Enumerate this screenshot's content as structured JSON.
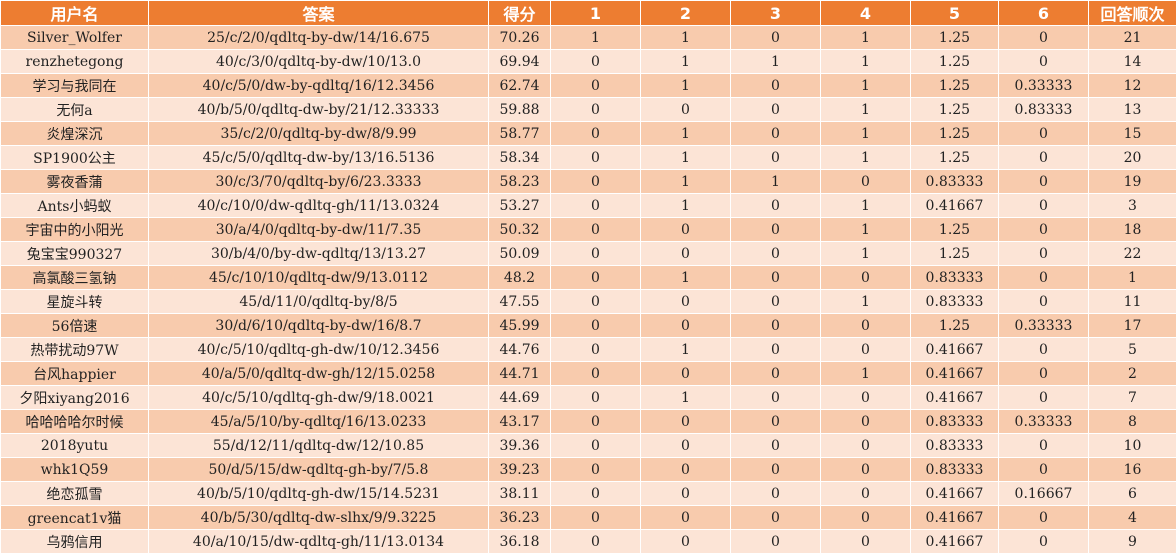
{
  "headers": [
    "用户名",
    "答案",
    "得分",
    "1",
    "2",
    "3",
    "4",
    "5",
    "6",
    "回答顺次"
  ],
  "rows": [
    [
      "Silver_Wolfer",
      "25/c/2/0/qdltq-by-dw/14/16.675",
      "70.26",
      "1",
      "1",
      "0",
      "1",
      "1.25",
      "0",
      "21"
    ],
    [
      "renzhetegong",
      "40/c/3/0/qdltq-by-dw/10/13.0",
      "69.94",
      "0",
      "1",
      "1",
      "1",
      "1.25",
      "0",
      "14"
    ],
    [
      "学习与我同在",
      "40/c/5/0/dw-by-qdltq/16/12.3456",
      "62.74",
      "0",
      "1",
      "0",
      "1",
      "1.25",
      "0.33333",
      "12"
    ],
    [
      "无何a",
      "40/b/5/0/qdltq-dw-by/21/12.33333",
      "59.88",
      "0",
      "0",
      "0",
      "1",
      "1.25",
      "0.83333",
      "13"
    ],
    [
      "炎煌深沉",
      "35/c/2/0/qdltq-by-dw/8/9.99",
      "58.77",
      "0",
      "1",
      "0",
      "1",
      "1.25",
      "0",
      "15"
    ],
    [
      "SP1900公主",
      "45/c/5/0/qdltq-dw-by/13/16.5136",
      "58.34",
      "0",
      "1",
      "0",
      "1",
      "1.25",
      "0",
      "20"
    ],
    [
      "雾夜香蒲",
      "30/c/3/70/qdltq-by/6/23.3333",
      "58.23",
      "0",
      "1",
      "1",
      "0",
      "0.83333",
      "0",
      "19"
    ],
    [
      "Ants小蚂蚁",
      "40/c/10/0/dw-qdltq-gh/11/13.0324",
      "53.27",
      "0",
      "1",
      "0",
      "1",
      "0.41667",
      "0",
      "3"
    ],
    [
      "宇宙中的小阳光",
      "30/a/4/0/qdltq-by-dw/11/7.35",
      "50.32",
      "0",
      "0",
      "0",
      "1",
      "1.25",
      "0",
      "18"
    ],
    [
      "兔宝宝990327",
      "30/b/4/0/by-dw-qdltq/13/13.27",
      "50.09",
      "0",
      "0",
      "0",
      "1",
      "1.25",
      "0",
      "22"
    ],
    [
      "高氯酸三氢钠",
      "45/c/10/10/qdltq-dw/9/13.0112",
      "48.2",
      "0",
      "1",
      "0",
      "0",
      "0.83333",
      "0",
      "1"
    ],
    [
      "星旋斗转",
      "45/d/11/0/qdltq-by/8/5",
      "47.55",
      "0",
      "0",
      "0",
      "1",
      "0.83333",
      "0",
      "11"
    ],
    [
      "56倍速",
      "30/d/6/10/qdltq-by-dw/16/8.7",
      "45.99",
      "0",
      "0",
      "0",
      "0",
      "1.25",
      "0.33333",
      "17"
    ],
    [
      "热带扰动97W",
      "40/c/5/10/qdltq-gh-dw/10/12.3456",
      "44.76",
      "0",
      "1",
      "0",
      "0",
      "0.41667",
      "0",
      "5"
    ],
    [
      "台风happier",
      "40/a/5/0/qdltq-dw-gh/12/15.0258",
      "44.71",
      "0",
      "0",
      "0",
      "1",
      "0.41667",
      "0",
      "2"
    ],
    [
      "夕阳xiyang2016",
      "40/c/5/10/qdltq-gh-dw/9/18.0021",
      "44.69",
      "0",
      "1",
      "0",
      "0",
      "0.41667",
      "0",
      "7"
    ],
    [
      "哈哈哈哈尔时候",
      "45/a/5/10/by-qdltq/16/13.0233",
      "43.17",
      "0",
      "0",
      "0",
      "0",
      "0.83333",
      "0.33333",
      "8"
    ],
    [
      "2018yutu",
      "55/d/12/11/qdltq-dw/12/10.85",
      "39.36",
      "0",
      "0",
      "0",
      "0",
      "0.83333",
      "0",
      "10"
    ],
    [
      "whk1Q59",
      "50/d/5/15/dw-qdltq-gh-by/7/5.8",
      "39.23",
      "0",
      "0",
      "0",
      "0",
      "0.83333",
      "0",
      "16"
    ],
    [
      "绝恋孤雪",
      "40/b/5/10/qdltq-gh-dw/15/14.5231",
      "38.11",
      "0",
      "0",
      "0",
      "0",
      "0.41667",
      "0.16667",
      "6"
    ],
    [
      "greencat1v猫",
      "40/b/5/30/qdltq-dw-slhx/9/9.3225",
      "36.23",
      "0",
      "0",
      "0",
      "0",
      "0.41667",
      "0",
      "4"
    ],
    [
      "乌鸦信用",
      "40/a/10/15/dw-qdltq-gh/11/13.0134",
      "36.18",
      "0",
      "0",
      "0",
      "0",
      "0.41667",
      "0",
      "9"
    ]
  ]
}
